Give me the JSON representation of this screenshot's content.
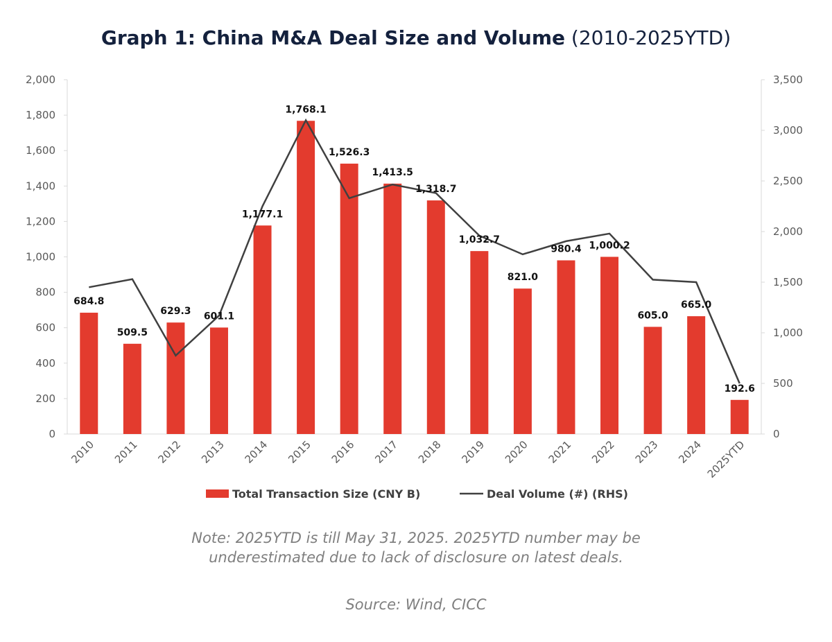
{
  "title": {
    "main": "Graph 1: China M&A Deal Size and Volume",
    "sub": "(2010-2025YTD)"
  },
  "note": "Note: 2025YTD is till May 31, 2025. 2025YTD number may be underestimated due to lack of disclosure on latest deals.",
  "source": "Source: Wind, CICC",
  "chart_data": {
    "type": "bar+line",
    "categories": [
      "2010",
      "2011",
      "2012",
      "2013",
      "2014",
      "2015",
      "2016",
      "2017",
      "2018",
      "2019",
      "2020",
      "2021",
      "2022",
      "2023",
      "2024",
      "2025YTD"
    ],
    "series": [
      {
        "name": "Total Transaction Size (CNY B)",
        "type": "bar",
        "axis": "left",
        "color": "#e33b2e",
        "values": [
          684.8,
          509.5,
          629.3,
          601.1,
          1177.1,
          1768.1,
          1526.3,
          1413.5,
          1318.7,
          1032.7,
          821.0,
          980.4,
          1000.2,
          605.0,
          665.0,
          192.6
        ],
        "labels": [
          "684.8",
          "509.5",
          "629.3",
          "601.1",
          "1,177.1",
          "1,768.1",
          "1,526.3",
          "1,413.5",
          "1,318.7",
          "1,032.7",
          "821.0",
          "980.4",
          "1,000.2",
          "605.0",
          "665.0",
          "192.6"
        ]
      },
      {
        "name": "Deal Volume (#) (RHS)",
        "type": "line",
        "axis": "right",
        "color": "#404040",
        "values": [
          1450,
          1530,
          775,
          1170,
          2250,
          3100,
          2330,
          2465,
          2380,
          1960,
          1775,
          1905,
          1980,
          1525,
          1500,
          500
        ]
      }
    ],
    "y_left": {
      "range": [
        0,
        2000
      ],
      "ticks": [
        "0",
        "200",
        "400",
        "600",
        "800",
        "1,000",
        "1,200",
        "1,400",
        "1,600",
        "1,800",
        "2,000"
      ]
    },
    "y_right": {
      "range": [
        0,
        3500
      ],
      "ticks": [
        "0",
        "500",
        "1,000",
        "1,500",
        "2,000",
        "2,500",
        "3,000",
        "3,500"
      ]
    },
    "grid": false,
    "legend": "bottom"
  }
}
